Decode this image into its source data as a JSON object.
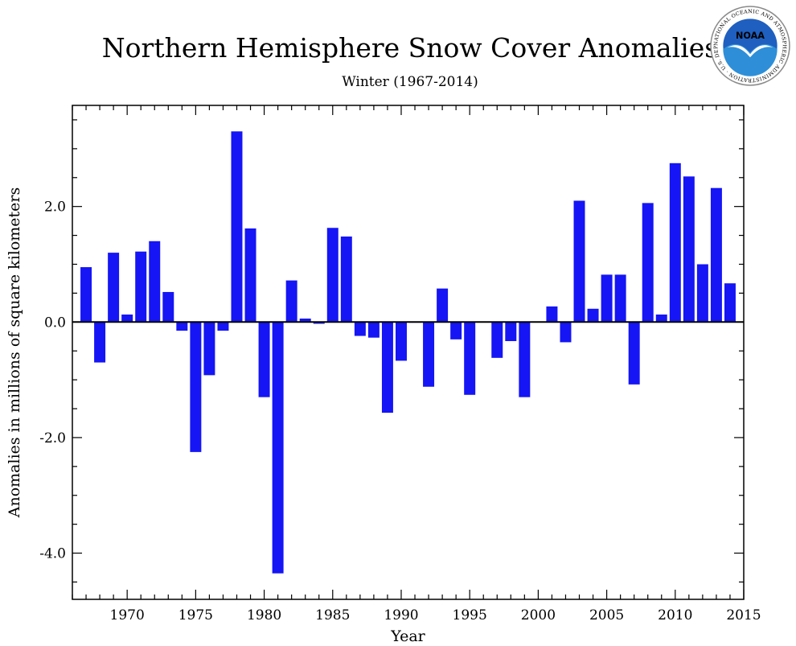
{
  "chart_data": {
    "type": "bar",
    "title": "Northern Hemisphere Snow Cover Anomalies",
    "subtitle": "Winter (1967-2014)",
    "xlabel": "Year",
    "ylabel": "Anomalies in millions of square kilometers",
    "xlim": [
      1966,
      2015
    ],
    "ylim": [
      -4.8,
      3.75
    ],
    "x_ticks": [
      1970,
      1975,
      1980,
      1985,
      1990,
      1995,
      2000,
      2005,
      2010,
      2015
    ],
    "y_ticks": [
      -4.0,
      -2.0,
      0.0,
      2.0
    ],
    "y_tick_labels": [
      "-4.0",
      "-2.0",
      "0.0",
      "2.0"
    ],
    "bar_color": "#1515f5",
    "zero_line_color": "#000000",
    "grid": false,
    "legend": "none",
    "x": [
      1967,
      1968,
      1969,
      1970,
      1971,
      1972,
      1973,
      1974,
      1975,
      1976,
      1977,
      1978,
      1979,
      1980,
      1981,
      1982,
      1983,
      1984,
      1985,
      1986,
      1987,
      1988,
      1989,
      1990,
      1991,
      1992,
      1993,
      1994,
      1995,
      1996,
      1997,
      1998,
      1999,
      2000,
      2001,
      2002,
      2003,
      2004,
      2005,
      2006,
      2007,
      2008,
      2009,
      2010,
      2011,
      2012,
      2013,
      2014
    ],
    "values": [
      0.95,
      -0.7,
      1.2,
      0.13,
      1.22,
      1.4,
      0.52,
      -0.15,
      -2.25,
      -0.92,
      -0.15,
      3.3,
      1.62,
      -1.3,
      -4.35,
      0.72,
      0.06,
      -0.03,
      1.63,
      1.48,
      -0.24,
      -0.27,
      -1.57,
      -0.67,
      -0.01,
      -1.12,
      0.58,
      -0.3,
      -1.26,
      0.0,
      -0.62,
      -0.33,
      -1.3,
      0.0,
      0.27,
      -0.35,
      2.1,
      0.23,
      0.82,
      0.82,
      -1.08,
      2.06,
      0.13,
      2.75,
      2.52,
      1.0,
      2.32,
      0.67
    ]
  },
  "logo": {
    "text": "NOAA",
    "ring_text": "NATIONAL OCEANIC AND ATMOSPHERIC ADMINISTRATION · U.S. DEPARTMENT OF COMMERCE ·",
    "icon": "noaa-logo-icon"
  }
}
